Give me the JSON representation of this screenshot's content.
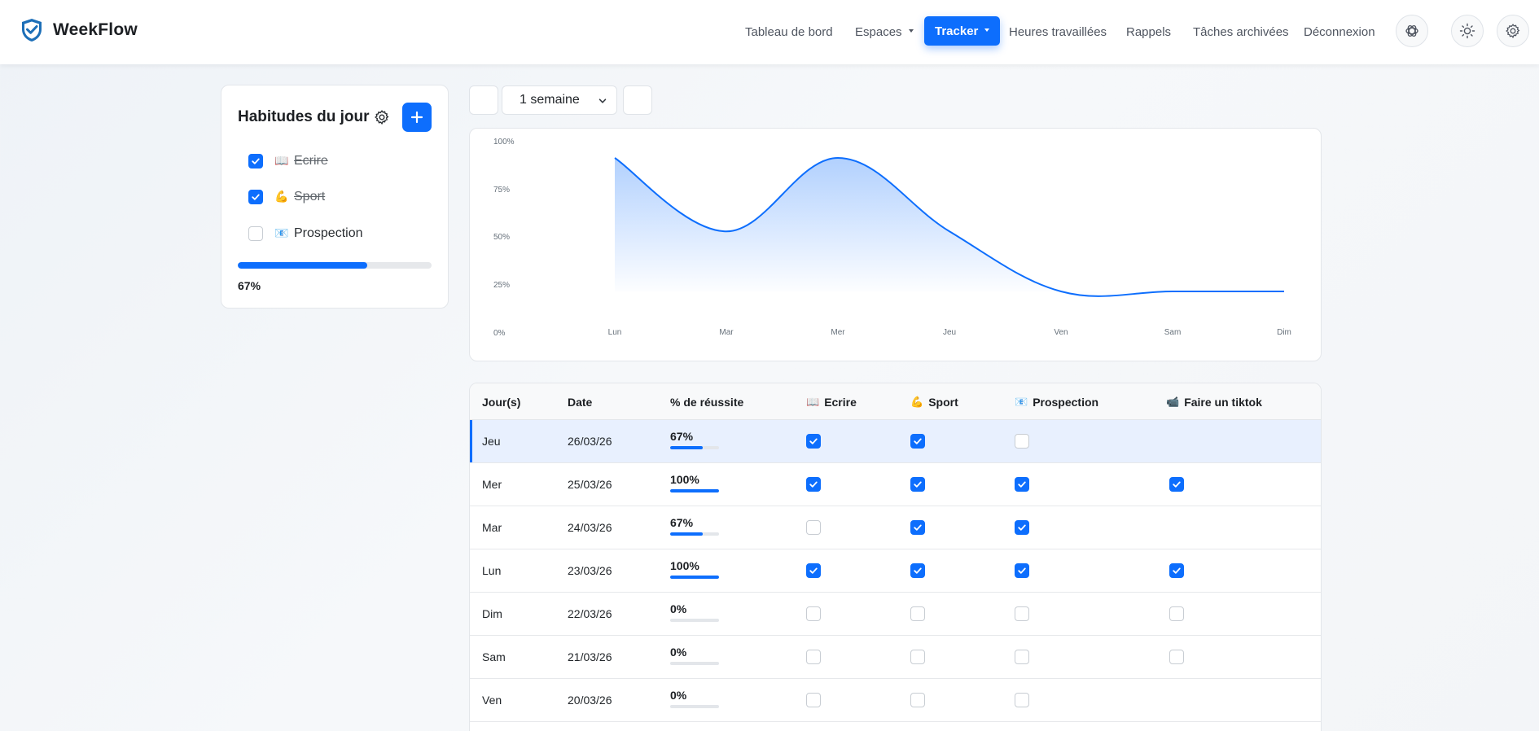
{
  "brand": {
    "name": "WeekFlow"
  },
  "nav": {
    "items": [
      {
        "label": "Tableau de bord",
        "caret": false,
        "active": false
      },
      {
        "label": "Espaces",
        "caret": true,
        "active": false
      },
      {
        "label": "Tracker",
        "caret": true,
        "active": true
      },
      {
        "label": "Heures travaillées",
        "caret": false,
        "active": false
      },
      {
        "label": "Rappels",
        "caret": false,
        "active": false
      },
      {
        "label": "Tâches archivées",
        "caret": false,
        "active": false
      },
      {
        "label": "Déconnexion",
        "caret": false,
        "active": false
      }
    ],
    "icons": [
      "openai-icon",
      "sun-icon",
      "settings-icon"
    ]
  },
  "habits": {
    "title": "Habitudes du jour",
    "items": [
      {
        "emoji": "📖",
        "label": "Ecrire",
        "checked": true
      },
      {
        "emoji": "💪",
        "label": "Sport",
        "checked": true
      },
      {
        "emoji": "📧",
        "label": "Prospection",
        "checked": false
      }
    ],
    "progress": 0.67,
    "progress_label": "67%"
  },
  "period": {
    "selected": "1 semaine"
  },
  "chart_data": {
    "type": "area",
    "categories": [
      "Lun",
      "Mar",
      "Mer",
      "Jeu",
      "Ven",
      "Sam",
      "Dim"
    ],
    "values": [
      100,
      67,
      100,
      67,
      0,
      0,
      0
    ],
    "yticks": [
      "100%",
      "75%",
      "50%",
      "25%",
      "0%"
    ],
    "ylim": [
      0,
      100
    ],
    "color": "#0d6efd",
    "grid": false
  },
  "table": {
    "headers": [
      {
        "emoji": "",
        "label": "Jour(s)"
      },
      {
        "emoji": "",
        "label": "Date"
      },
      {
        "emoji": "",
        "label": "% de réussite"
      },
      {
        "emoji": "📖",
        "label": "Ecrire"
      },
      {
        "emoji": "💪",
        "label": "Sport"
      },
      {
        "emoji": "📧",
        "label": "Prospection"
      },
      {
        "emoji": "📹",
        "label": "Faire un tiktok"
      }
    ],
    "rows": [
      {
        "day": "Jeu",
        "date": "26/03/26",
        "pct": "67%",
        "ratio": 0.67,
        "checks": [
          true,
          true,
          false,
          null
        ],
        "active": true
      },
      {
        "day": "Mer",
        "date": "25/03/26",
        "pct": "100%",
        "ratio": 1.0,
        "checks": [
          true,
          true,
          true,
          true
        ],
        "active": false
      },
      {
        "day": "Mar",
        "date": "24/03/26",
        "pct": "67%",
        "ratio": 0.67,
        "checks": [
          false,
          true,
          true,
          null
        ],
        "active": false
      },
      {
        "day": "Lun",
        "date": "23/03/26",
        "pct": "100%",
        "ratio": 1.0,
        "checks": [
          true,
          true,
          true,
          true
        ],
        "active": false
      },
      {
        "day": "Dim",
        "date": "22/03/26",
        "pct": "0%",
        "ratio": 0,
        "checks": [
          false,
          false,
          false,
          false
        ],
        "active": false
      },
      {
        "day": "Sam",
        "date": "21/03/26",
        "pct": "0%",
        "ratio": 0,
        "checks": [
          false,
          false,
          false,
          false
        ],
        "active": false
      },
      {
        "day": "Ven",
        "date": "20/03/26",
        "pct": "0%",
        "ratio": 0,
        "checks": [
          false,
          false,
          false,
          null
        ],
        "active": false
      }
    ]
  },
  "colors": {
    "accent": "#0d6efd",
    "background": "#f3f5f8",
    "card": "#ffffff"
  }
}
